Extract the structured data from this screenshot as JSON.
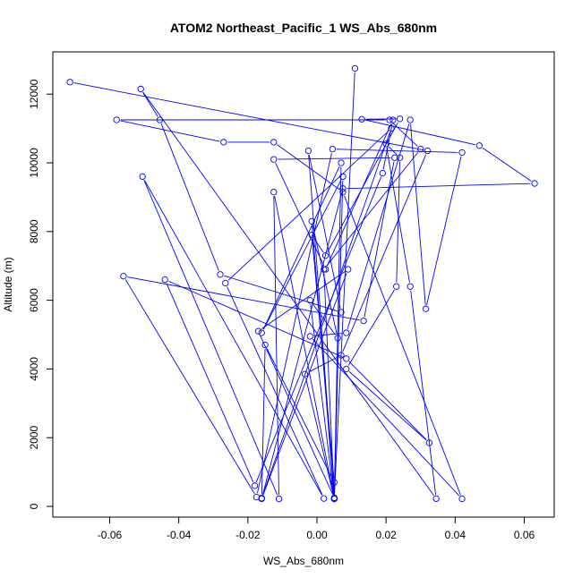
{
  "chart_data": {
    "type": "line",
    "title": "ATOM2 Northeast_Pacific_1 WS_Abs_680nm",
    "xlabel": "WS_Abs_680nm",
    "ylabel": "Altitude (m)",
    "xlim": [
      -0.075,
      0.068
    ],
    "ylim": [
      -300,
      13300
    ],
    "xticks": [
      -0.06,
      -0.04,
      -0.02,
      0.0,
      0.02,
      0.04,
      0.06
    ],
    "xtick_labels": [
      "-0.06",
      "-0.04",
      "-0.02",
      "0.00",
      "0.02",
      "0.04",
      "0.06"
    ],
    "yticks": [
      0,
      2000,
      4000,
      6000,
      8000,
      10000,
      12000
    ],
    "ytick_labels": [
      "0",
      "2000",
      "4000",
      "6000",
      "8000",
      "10000",
      "12000"
    ],
    "grid": false,
    "series": [
      {
        "color": "#0000ff",
        "marker": "open-circle",
        "points": [
          [
            0.011,
            12750
          ],
          [
            0.005,
            220
          ],
          [
            -0.002,
            6000
          ],
          [
            0.006,
            4900
          ],
          [
            -0.0015,
            8300
          ],
          [
            0.005,
            230
          ],
          [
            0.0075,
            9600
          ],
          [
            -0.016,
            5050
          ],
          [
            0.007,
            10000
          ],
          [
            0.005,
            250
          ],
          [
            -0.017,
            5100
          ],
          [
            0.009,
            6900
          ],
          [
            -0.016,
            220
          ],
          [
            0.0075,
            9250
          ],
          [
            0.063,
            9400
          ],
          [
            0.047,
            10500
          ],
          [
            0.013,
            11270
          ],
          [
            0.024,
            11280
          ],
          [
            0.0025,
            7300
          ],
          [
            -0.0015,
            7900
          ],
          [
            0.005,
            700
          ],
          [
            -0.015,
            4700
          ],
          [
            -0.016,
            240
          ],
          [
            0.0215,
            11000
          ],
          [
            -0.0265,
            6500
          ],
          [
            0.002,
            230
          ],
          [
            -0.0505,
            9600
          ],
          [
            -0.011,
            220
          ],
          [
            -0.0125,
            9150
          ],
          [
            0.005,
            225
          ],
          [
            -0.0025,
            10350
          ],
          [
            0.007,
            5650
          ],
          [
            -0.028,
            6750
          ],
          [
            -0.0455,
            11250
          ],
          [
            -0.051,
            12150
          ],
          [
            0.0345,
            225
          ],
          [
            0.027,
            6400
          ],
          [
            0.02,
            10550
          ],
          [
            0.024,
            10150
          ],
          [
            0.023,
            6400
          ],
          [
            0.0085,
            4000
          ],
          [
            0.0325,
            1850
          ],
          [
            0.0085,
            4300
          ],
          [
            -0.044,
            6600
          ],
          [
            -0.018,
            600
          ],
          [
            0.019,
            9700
          ],
          [
            0.022,
            11250
          ],
          [
            0.0025,
            6900
          ],
          [
            -0.0125,
            10100
          ],
          [
            0.0225,
            10150
          ],
          [
            0.0135,
            5400
          ],
          [
            -0.056,
            6700
          ],
          [
            -0.0175,
            270
          ],
          [
            0.0045,
            10400
          ],
          [
            0.042,
            10300
          ],
          [
            0.0315,
            5750
          ],
          [
            0.027,
            11250
          ],
          [
            0.0085,
            5050
          ],
          [
            -0.002,
            4950
          ],
          [
            0.042,
            220
          ],
          [
            0.0075,
            9150
          ],
          [
            -0.0125,
            10600
          ],
          [
            -0.027,
            10600
          ],
          [
            -0.058,
            11250
          ],
          [
            0.021,
            11250
          ],
          [
            0.03,
            10400
          ],
          [
            0.002,
            6900
          ],
          [
            0.005,
            220
          ],
          [
            -0.0035,
            3850
          ],
          [
            0.007,
            4400
          ],
          [
            0.032,
            10350
          ],
          [
            -0.0715,
            12350
          ]
        ]
      }
    ]
  }
}
